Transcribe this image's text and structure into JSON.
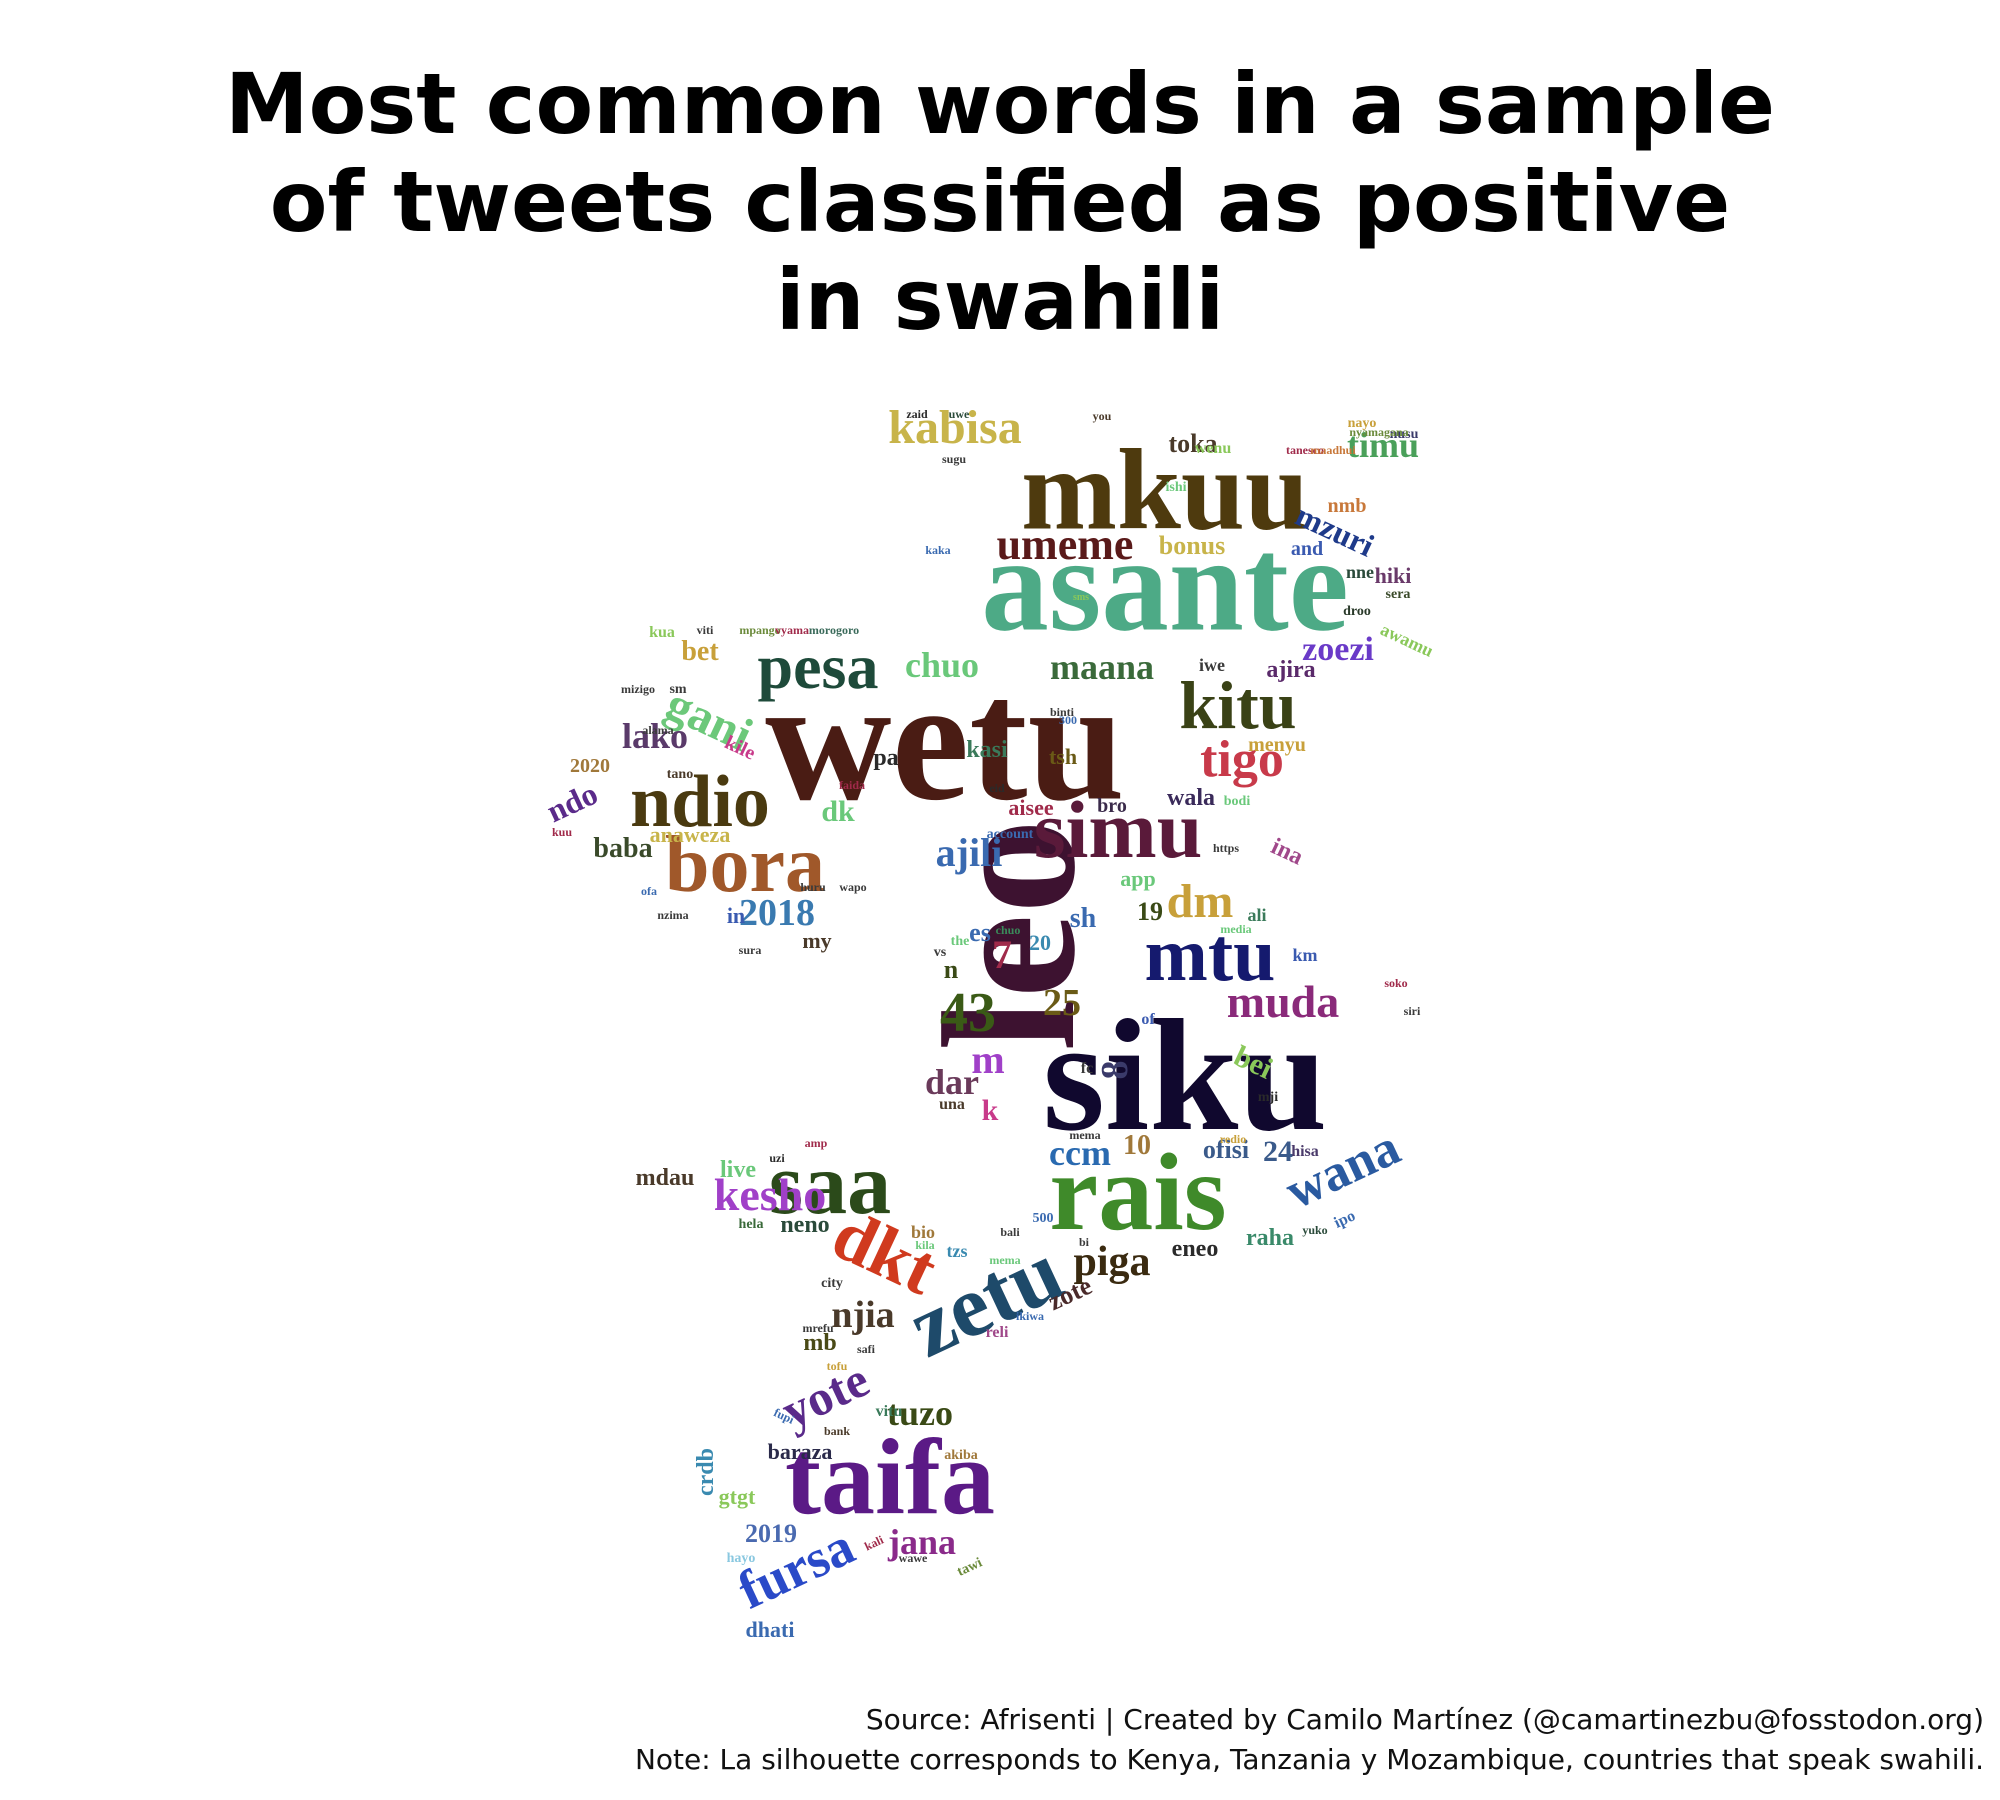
{
  "title": {
    "line1": "Most common words in a sample",
    "line2": "of tweets classified as positive",
    "line3": "in swahili"
  },
  "footer": {
    "source": "Source: Afrisenti | Created by Camilo Martínez (@camartinezbu@fosstodon.org)",
    "note": "Note: La silhouette corresponds to Kenya, Tanzania y Mozambique, countries that speak swahili."
  },
  "words": [
    {
      "text": "siku",
      "color": "#10082e"
    },
    {
      "text": "leo",
      "color": "#3d1230"
    },
    {
      "text": "wetu",
      "color": "#4a1c14"
    },
    {
      "text": "asante",
      "color": "#4daa86"
    },
    {
      "text": "mkuu",
      "color": "#4e3a0e"
    },
    {
      "text": "rais",
      "color": "#3f8a2a"
    },
    {
      "text": "taifa",
      "color": "#5b1a86"
    },
    {
      "text": "saa",
      "color": "#2b4a1a"
    },
    {
      "text": "zetu",
      "color": "#1e4a6a"
    },
    {
      "text": "dkt",
      "color": "#d03a1e"
    },
    {
      "text": "simu",
      "color": "#5a1a3a"
    },
    {
      "text": "bora",
      "color": "#a0582a"
    },
    {
      "text": "ndio",
      "color": "#4a3a10"
    },
    {
      "text": "kitu",
      "color": "#3a4216"
    },
    {
      "text": "pesa",
      "color": "#1e4a3a"
    },
    {
      "text": "mtu",
      "color": "#151a6e"
    },
    {
      "text": "muda",
      "color": "#8a2a7a"
    },
    {
      "text": "umeme",
      "color": "#5a1a1a"
    },
    {
      "text": "kabisa",
      "color": "#c8b44a"
    },
    {
      "text": "tigo",
      "color": "#c83a4a"
    },
    {
      "text": "wana",
      "color": "#2a5aa0"
    },
    {
      "text": "kesho",
      "color": "#a040c8"
    },
    {
      "text": "fursa",
      "color": "#2a4ac8"
    },
    {
      "text": "yote",
      "color": "#5a2a8a"
    },
    {
      "text": "gani",
      "color": "#6cc87a"
    },
    {
      "text": "piga",
      "color": "#3a2a10"
    },
    {
      "text": "2018",
      "color": "#3a7ab0"
    },
    {
      "text": "dm",
      "color": "#c8a03a"
    },
    {
      "text": "ajili",
      "color": "#3a6ab0"
    },
    {
      "text": "maana",
      "color": "#3a6a3a"
    },
    {
      "text": "chuo",
      "color": "#6ac87a"
    },
    {
      "text": "ccm",
      "color": "#2a6ab0"
    },
    {
      "text": "njia",
      "color": "#4a3a2a"
    },
    {
      "text": "jana",
      "color": "#8a2a8a"
    },
    {
      "text": "tuzo",
      "color": "#3a4a16"
    },
    {
      "text": "zoezi",
      "color": "#6a3ac8"
    },
    {
      "text": "timu",
      "color": "#4aa05a"
    },
    {
      "text": "mzuri",
      "color": "#1e3a8a"
    },
    {
      "text": "43",
      "color": "#3a5a16"
    },
    {
      "text": "25",
      "color": "#6a5a16"
    },
    {
      "text": "lako",
      "color": "#5a3a6a"
    },
    {
      "text": "ndo",
      "color": "#5a2a8a"
    },
    {
      "text": "baba",
      "color": "#3a4a2a"
    },
    {
      "text": "dar",
      "color": "#6a3a5a"
    },
    {
      "text": "toka",
      "color": "#4a3a2a"
    },
    {
      "text": "bonus",
      "color": "#c8b44a"
    },
    {
      "text": "ajira",
      "color": "#5a2a6a"
    },
    {
      "text": "wala",
      "color": "#3a2a5a"
    },
    {
      "text": "ofisi",
      "color": "#3a5a8a"
    },
    {
      "text": "bet",
      "color": "#c8a03a"
    },
    {
      "text": "dk",
      "color": "#6ac87a"
    },
    {
      "text": "sh",
      "color": "#3a6ab0"
    },
    {
      "text": "bei",
      "color": "#8ac85a"
    },
    {
      "text": "24",
      "color": "#3a5a8a"
    },
    {
      "text": "10",
      "color": "#a0783a"
    },
    {
      "text": "19",
      "color": "#3a4a16"
    },
    {
      "text": "zote",
      "color": "#4a2a2a"
    },
    {
      "text": "eneo",
      "color": "#2a2a2a"
    },
    {
      "text": "raha",
      "color": "#3a8a6a"
    },
    {
      "text": "live",
      "color": "#6ac87a"
    },
    {
      "text": "mdau",
      "color": "#4a3a2a"
    },
    {
      "text": "neno",
      "color": "#2a4a3a"
    },
    {
      "text": "2019",
      "color": "#4a6ab0"
    },
    {
      "text": "anaweza",
      "color": "#c8b44a"
    },
    {
      "text": "2020",
      "color": "#a0783a"
    },
    {
      "text": "crdb",
      "color": "#3a8ab0"
    },
    {
      "text": "gtgt",
      "color": "#8ac85a"
    },
    {
      "text": "baraza",
      "color": "#2a2a4a"
    },
    {
      "text": "dhati",
      "color": "#3a6ab0"
    },
    {
      "text": "hiki",
      "color": "#6a3a6a"
    },
    {
      "text": "and",
      "color": "#3a5ab0"
    },
    {
      "text": "nne",
      "color": "#2a4a3a"
    },
    {
      "text": "kasi",
      "color": "#3a7a5a"
    },
    {
      "text": "tsh",
      "color": "#6a5a16"
    },
    {
      "text": "aisee",
      "color": "#a02a4a"
    },
    {
      "text": "bro",
      "color": "#3a2a4a"
    },
    {
      "text": "menyu",
      "color": "#c8a03a"
    },
    {
      "text": "ina",
      "color": "#a0488a"
    },
    {
      "text": "es",
      "color": "#3a6ab0"
    },
    {
      "text": "my",
      "color": "#4a3a2a"
    },
    {
      "text": "in",
      "color": "#3a5ab0"
    },
    {
      "text": "mb",
      "color": "#4a4a16"
    },
    {
      "text": "wenu",
      "color": "#8ac85a"
    },
    {
      "text": "nayo",
      "color": "#c8a03a"
    },
    {
      "text": "nusu",
      "color": "#3a3a6a"
    },
    {
      "text": "uwe",
      "color": "#2a4a3a"
    },
    {
      "text": "you",
      "color": "#4a3a2a"
    },
    {
      "text": "mpango",
      "color": "#6a8a3a"
    },
    {
      "text": "morogoro",
      "color": "#3a6a5a"
    },
    {
      "text": "vyama",
      "color": "#a02a4a"
    },
    {
      "text": "sera",
      "color": "#3a4a2a"
    },
    {
      "text": "droo",
      "color": "#2a3a2a"
    },
    {
      "text": "awamu",
      "color": "#8ac85a"
    },
    {
      "text": "iwe",
      "color": "#3a3a3a"
    },
    {
      "text": "bodi",
      "color": "#6ac87a"
    },
    {
      "text": "app",
      "color": "#6ac87a"
    },
    {
      "text": "ali",
      "color": "#3a7a5a"
    },
    {
      "text": "km",
      "color": "#3a5ab0"
    },
    {
      "text": "mji",
      "color": "#2a2a2a"
    },
    {
      "text": "hisa",
      "color": "#4a3a6a"
    },
    {
      "text": "ipo",
      "color": "#3a6ab0"
    },
    {
      "text": "yuko",
      "color": "#2a4a3a"
    },
    {
      "text": "bio",
      "color": "#a0783a"
    },
    {
      "text": "tzs",
      "color": "#3a8ab0"
    },
    {
      "text": "city",
      "color": "#3a3a3a"
    },
    {
      "text": "reli",
      "color": "#a0488a"
    },
    {
      "text": "safi",
      "color": "#3a3a3a"
    },
    {
      "text": "vitu",
      "color": "#3a7a5a"
    },
    {
      "text": "bank",
      "color": "#4a3a2a"
    },
    {
      "text": "akiba",
      "color": "#a0783a"
    },
    {
      "text": "hayo",
      "color": "#8ac8e0"
    },
    {
      "text": "tawi",
      "color": "#6a8a3a"
    },
    {
      "text": "hela",
      "color": "#3a6a3a"
    },
    {
      "text": "uzi",
      "color": "#2a2a2a"
    },
    {
      "text": "amp",
      "color": "#a02a4a"
    },
    {
      "text": "kila",
      "color": "#6ac87a"
    },
    {
      "text": "kile",
      "color": "#c83a8a"
    },
    {
      "text": "pa",
      "color": "#2a2a2a"
    },
    {
      "text": "m",
      "color": "#a040c8"
    },
    {
      "text": "k",
      "color": "#c83a8a"
    },
    {
      "text": "una",
      "color": "#4a3a2a"
    },
    {
      "text": "n",
      "color": "#3a4a16"
    },
    {
      "text": "ishi",
      "color": "#6ac87a"
    },
    {
      "text": "sugu",
      "color": "#3a3a3a"
    },
    {
      "text": "nmb",
      "color": "#c8783a"
    },
    {
      "text": "kua",
      "color": "#8ac85a"
    },
    {
      "text": "sm",
      "color": "#3a3a3a"
    },
    {
      "text": "300",
      "color": "#3a6ab0"
    },
    {
      "text": "eid",
      "color": "#2a2a2a"
    },
    {
      "text": "vs",
      "color": "#3a3a3a"
    },
    {
      "text": "the",
      "color": "#6ac87a"
    },
    {
      "text": "of",
      "color": "#3a5ab0"
    },
    {
      "text": "fc",
      "color": "#3a3a3a"
    },
    {
      "text": "20",
      "color": "#3a8ab0"
    },
    {
      "text": "tano",
      "color": "#4a3a2a"
    },
    {
      "text": "nzima",
      "color": "#3a3a3a"
    },
    {
      "text": "huru",
      "color": "#3a3a3a"
    },
    {
      "text": "wapo",
      "color": "#3a3a3a"
    },
    {
      "text": "siri",
      "color": "#3a3a3a"
    },
    {
      "text": "soko",
      "color": "#a02a4a"
    },
    {
      "text": "500",
      "color": "#3a6ab0"
    },
    {
      "text": "bali",
      "color": "#3a3a3a"
    },
    {
      "text": "mema",
      "color": "#3a3a3a"
    },
    {
      "text": "redio",
      "color": "#c8a03a"
    },
    {
      "text": "https",
      "color": "#3a3a3a"
    },
    {
      "text": "media",
      "color": "#6ac87a"
    },
    {
      "text": "binti",
      "color": "#3a3a3a"
    },
    {
      "text": "alama",
      "color": "#3a3a3a"
    },
    {
      "text": "faida",
      "color": "#a02a4a"
    },
    {
      "text": "account",
      "color": "#3a6ab0"
    },
    {
      "text": "kaka",
      "color": "#3a6ab0"
    },
    {
      "text": "viti",
      "color": "#3a3a3a"
    },
    {
      "text": "sms",
      "color": "#8ac85a"
    },
    {
      "text": "nyamagana",
      "color": "#6a8a3a"
    },
    {
      "text": "tanesco",
      "color": "#a02a4a"
    },
    {
      "text": "maadhui",
      "color": "#c8783a"
    },
    {
      "text": "zaid",
      "color": "#2a2a2a"
    },
    {
      "text": "mizigo",
      "color": "#3a3a3a"
    },
    {
      "text": "ofa",
      "color": "#3a6ab0"
    },
    {
      "text": "kuu",
      "color": "#a02a4a"
    },
    {
      "text": "fupi",
      "color": "#3a6ab0"
    },
    {
      "text": "chuo",
      "color": "#3a8a5a"
    },
    {
      "text": "sura",
      "color": "#3a3a3a"
    },
    {
      "text": "ikiwa",
      "color": "#3a6ab0"
    },
    {
      "text": "bi",
      "color": "#3a3a3a"
    },
    {
      "text": "wawe",
      "color": "#3a3a3a"
    },
    {
      "text": "kali",
      "color": "#a02a4a"
    },
    {
      "text": "mrefu",
      "color": "#3a3a3a"
    },
    {
      "text": "tofu",
      "color": "#c8a03a"
    },
    {
      "text": "mema",
      "color": "#6ac87a"
    },
    {
      "text": "7",
      "color": "#a02a4a"
    },
    {
      "text": "8",
      "color": "#3a3a6a"
    }
  ]
}
